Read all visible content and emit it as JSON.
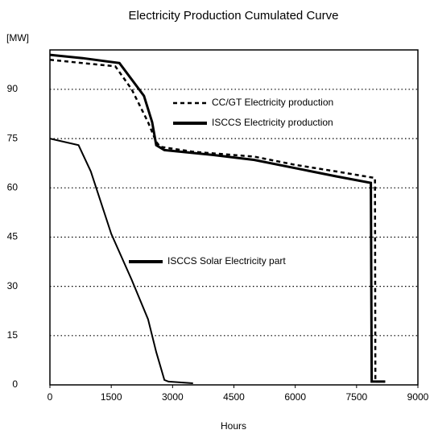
{
  "chart_data": {
    "type": "line",
    "title": "Electricity Production Cumulated Curve",
    "ylabel": "[MW]",
    "xlabel": "Hours",
    "xlim": [
      0,
      9000
    ],
    "ylim": [
      0,
      102
    ],
    "xticks": [
      0,
      1500,
      3000,
      4500,
      6000,
      7500,
      9000
    ],
    "yticks": [
      0,
      15,
      30,
      45,
      60,
      75,
      90
    ],
    "grid": true,
    "series": [
      {
        "name": "CC/GT Electricity production",
        "color": "#000000",
        "style": "dashed",
        "x": [
          0,
          800,
          1600,
          2000,
          2400,
          2600,
          2700,
          3500,
          5000,
          6000,
          7000,
          7950,
          7960,
          8000,
          8200
        ],
        "values": [
          99,
          98,
          97,
          90,
          80,
          74,
          72.5,
          71,
          69.5,
          67,
          65,
          63,
          1,
          1,
          1
        ]
      },
      {
        "name": "ISCCS Electricity production",
        "color": "#000000",
        "style": "solid",
        "x": [
          0,
          800,
          1700,
          2000,
          2300,
          2500,
          2600,
          2800,
          4000,
          5000,
          6000,
          7000,
          7850,
          7870,
          8200
        ],
        "values": [
          100.5,
          99.5,
          98,
          93,
          88,
          80,
          73,
          71.5,
          70,
          68.5,
          66,
          63.5,
          61.5,
          1,
          1
        ]
      },
      {
        "name": "ISCCS Solar Electricity part",
        "color": "#000000",
        "style": "solid",
        "x": [
          0,
          700,
          1000,
          1500,
          2000,
          2400,
          2600,
          2800,
          2900,
          3500
        ],
        "values": [
          75,
          73,
          65,
          46,
          32,
          20,
          10,
          1.5,
          1,
          0.5
        ]
      }
    ]
  }
}
